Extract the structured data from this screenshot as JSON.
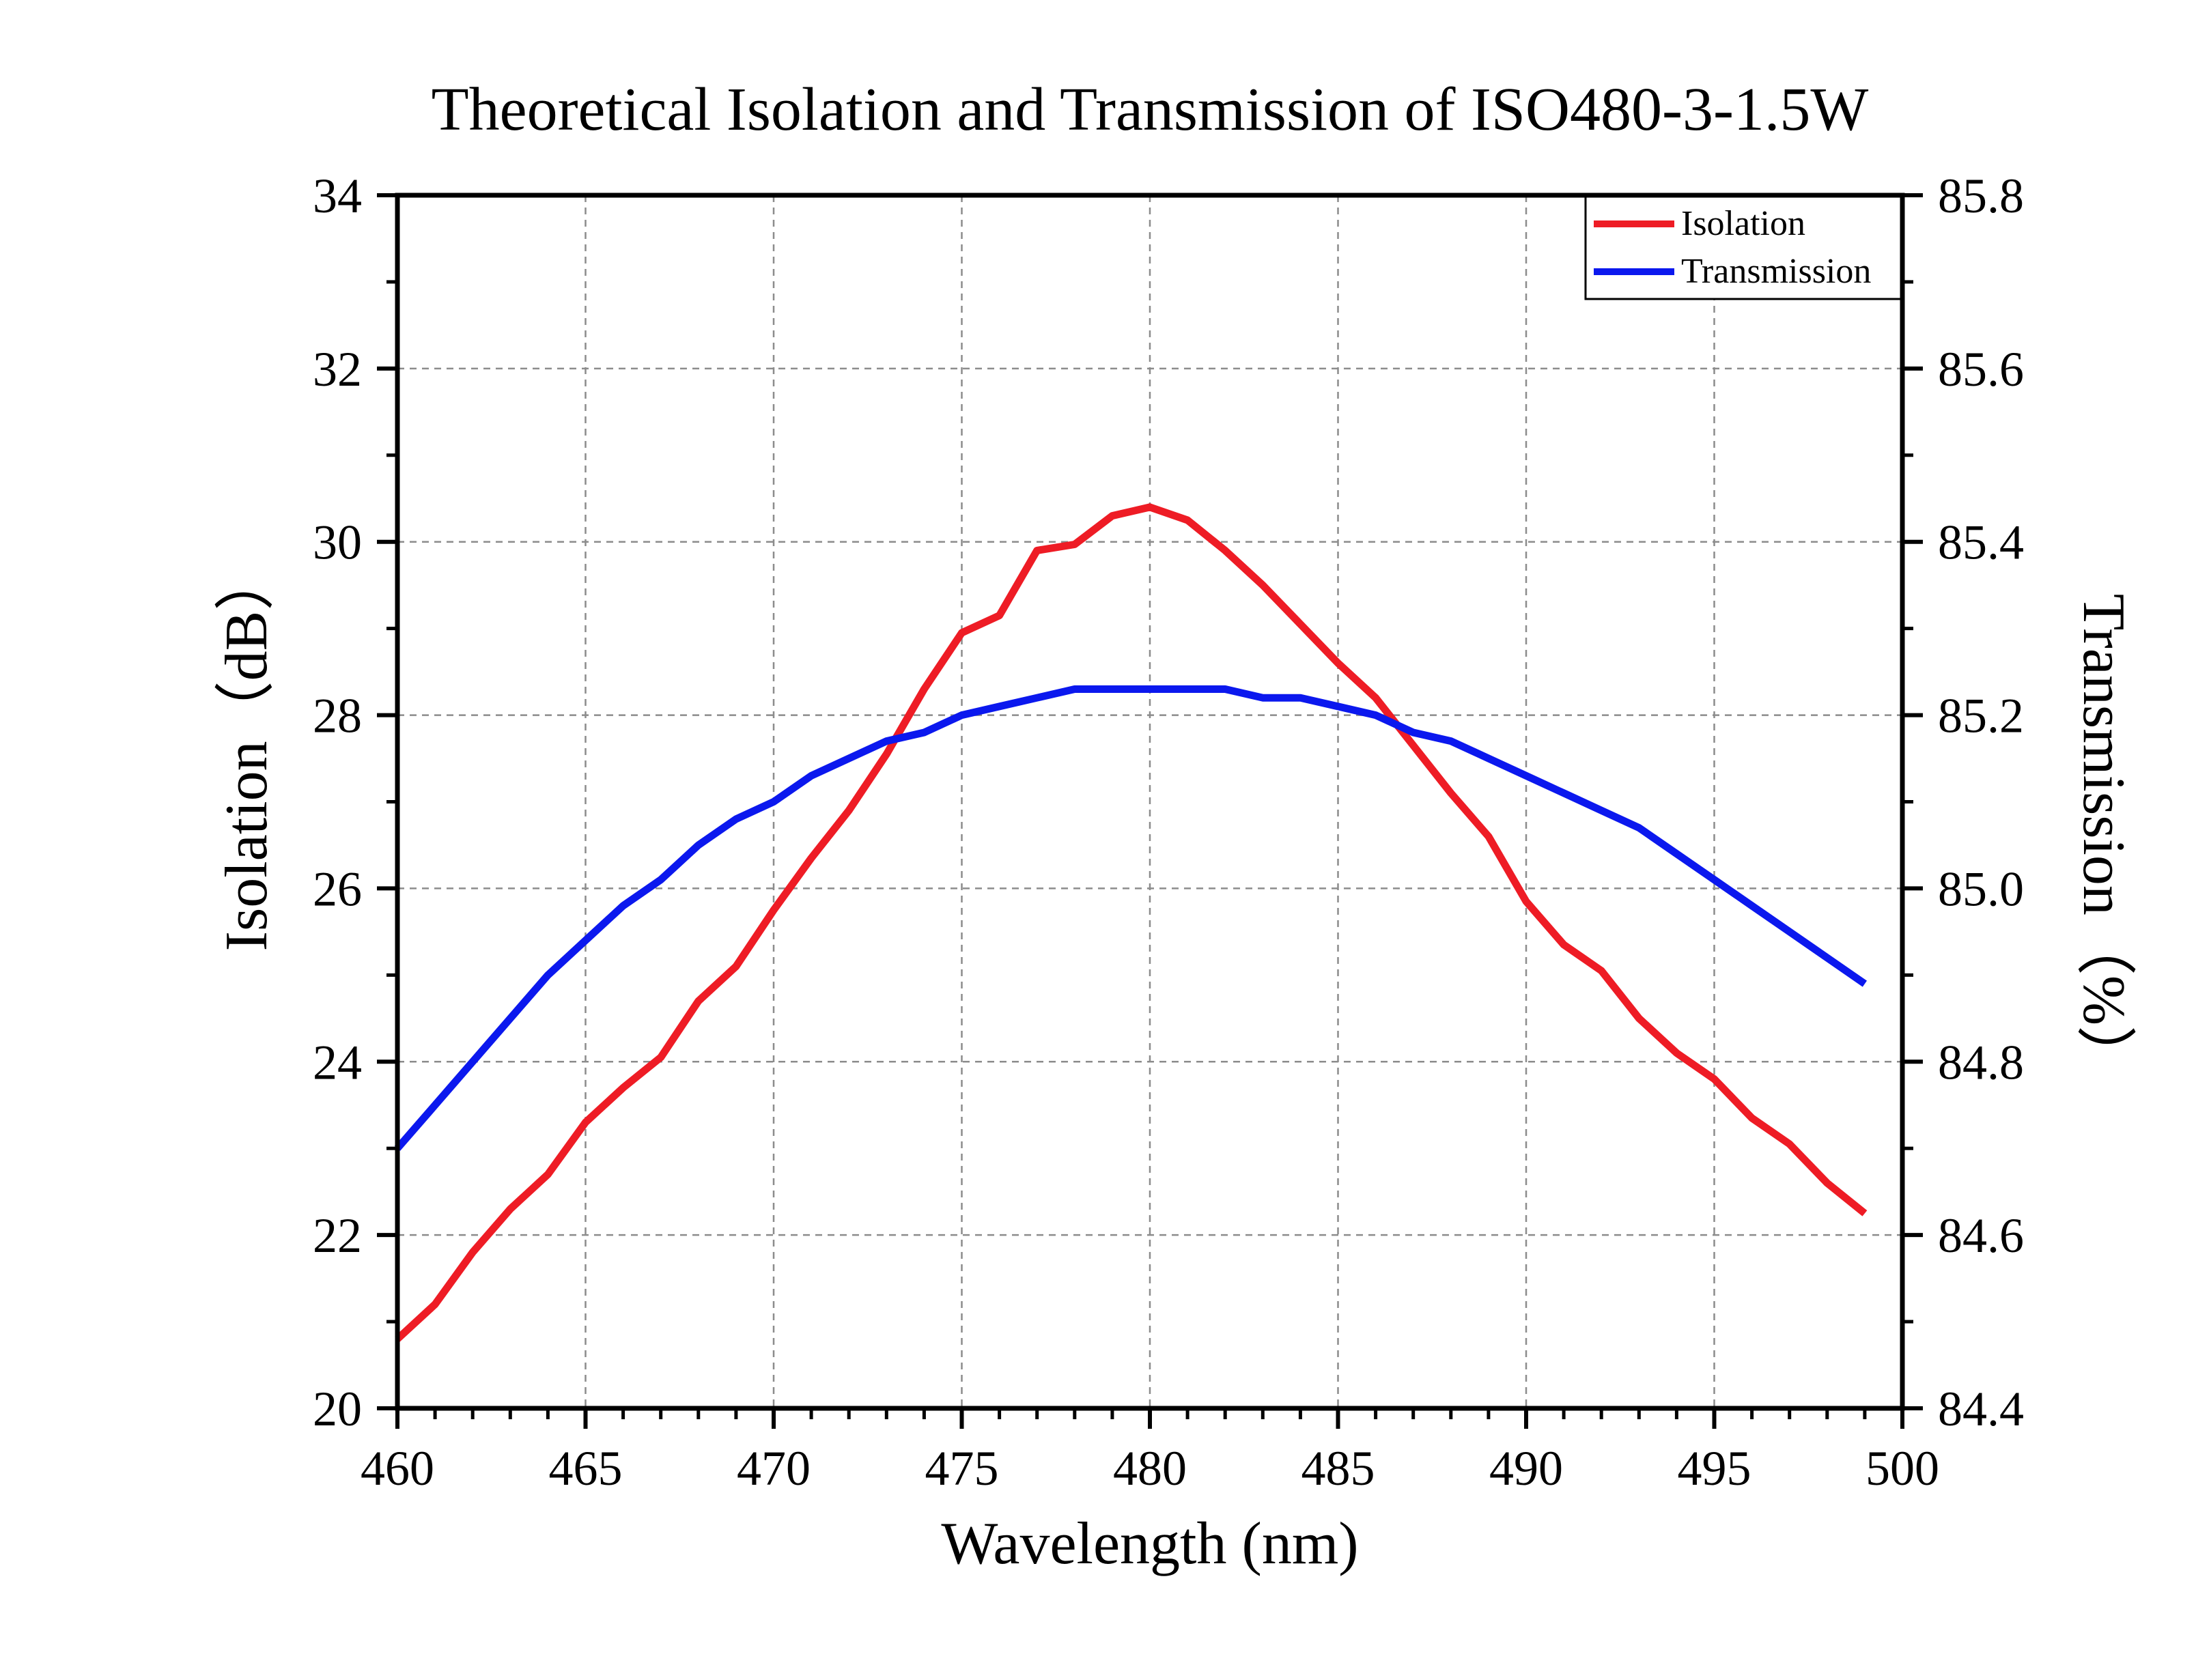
{
  "chart_data": {
    "type": "line",
    "title": "Theoretical Isolation and Transmission of ISO480-3-1.5W",
    "xlabel": "Wavelength (nm)",
    "ylabel_left": "Isolation（dB）",
    "ylabel_right": "Transmission（%）",
    "xlim": [
      460,
      500
    ],
    "ylim_left": [
      20,
      34
    ],
    "ylim_right": [
      84.4,
      85.8
    ],
    "xticks": [
      "460",
      "465",
      "470",
      "475",
      "480",
      "485",
      "490",
      "495",
      "500"
    ],
    "yticks_left": [
      "20",
      "22",
      "24",
      "26",
      "28",
      "30",
      "32",
      "34"
    ],
    "yticks_right": [
      "84.4",
      "84.6",
      "84.8",
      "85.0",
      "85.2",
      "85.4",
      "85.6",
      "85.8"
    ],
    "grid": true,
    "legend_position": "top-right",
    "series": [
      {
        "name": "Isolation",
        "axis": "left",
        "color": "#ee1c25",
        "x": [
          460,
          461,
          462,
          463,
          464,
          465,
          466,
          467,
          468,
          469,
          470,
          471,
          472,
          473,
          474,
          475,
          476,
          477,
          478,
          479,
          480,
          481,
          482,
          483,
          484,
          485,
          486,
          487,
          488,
          489,
          490,
          491,
          492,
          493,
          494,
          495,
          496,
          497,
          498,
          499
        ],
        "y": [
          20.8,
          21.2,
          21.8,
          22.3,
          22.7,
          23.3,
          23.7,
          24.05,
          24.7,
          25.1,
          25.75,
          26.35,
          26.9,
          27.55,
          28.3,
          28.95,
          29.15,
          29.9,
          29.97,
          30.3,
          30.4,
          30.25,
          29.9,
          29.5,
          29.05,
          28.6,
          28.2,
          27.65,
          27.1,
          26.6,
          25.85,
          25.35,
          25.05,
          24.5,
          24.1,
          23.8,
          23.35,
          23.05,
          22.6,
          22.25
        ]
      },
      {
        "name": "Transmission",
        "axis": "right",
        "color": "#0b18ee",
        "x": [
          460,
          461,
          462,
          463,
          464,
          465,
          466,
          467,
          468,
          469,
          470,
          471,
          472,
          473,
          474,
          475,
          476,
          477,
          478,
          479,
          480,
          481,
          482,
          483,
          484,
          485,
          486,
          487,
          488,
          489,
          490,
          491,
          492,
          493,
          494,
          495,
          496,
          497,
          498,
          499
        ],
        "y": [
          84.7,
          84.75,
          84.8,
          84.85,
          84.9,
          84.94,
          84.98,
          85.01,
          85.05,
          85.08,
          85.1,
          85.13,
          85.15,
          85.17,
          85.18,
          85.2,
          85.21,
          85.22,
          85.23,
          85.23,
          85.23,
          85.23,
          85.23,
          85.22,
          85.22,
          85.21,
          85.2,
          85.18,
          85.17,
          85.15,
          85.13,
          85.11,
          85.09,
          85.07,
          85.04,
          85.01,
          84.98,
          84.95,
          84.92,
          84.89
        ]
      }
    ]
  }
}
